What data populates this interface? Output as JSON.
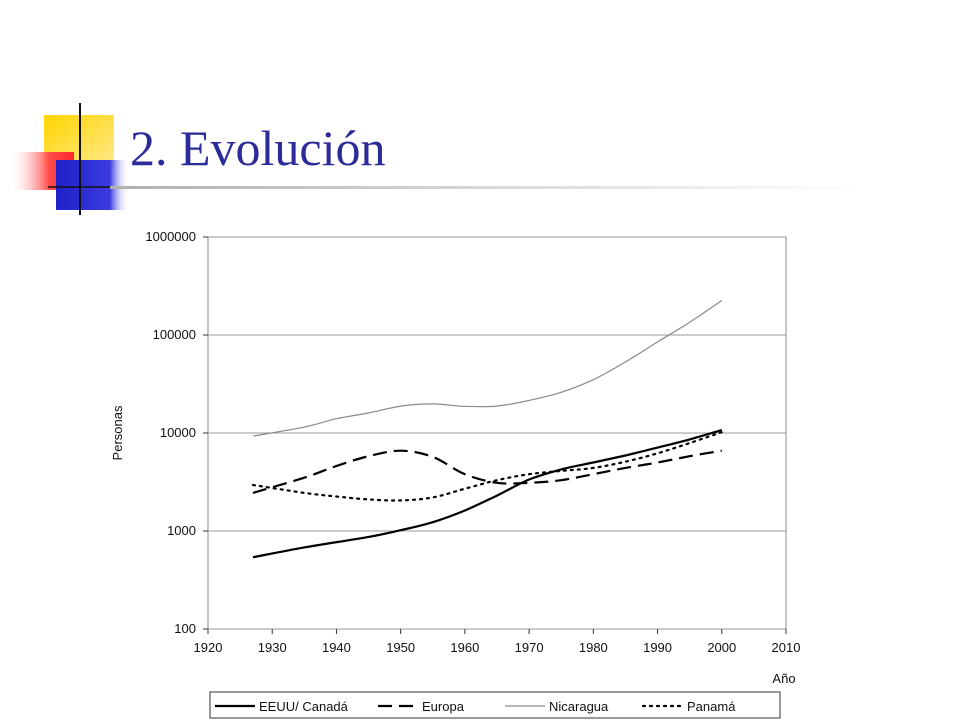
{
  "slide": {
    "title": "2. Evolución"
  },
  "chart_data": {
    "type": "line",
    "title": "",
    "xlabel": "Año",
    "ylabel": "Personas",
    "x_ticks": [
      1920,
      1930,
      1940,
      1950,
      1960,
      1970,
      1980,
      1990,
      2000,
      2010
    ],
    "y_ticks": [
      100,
      1000,
      10000,
      100000,
      1000000
    ],
    "y_tick_labels": [
      "100",
      "1000",
      "10000",
      "100000",
      "1000000"
    ],
    "x_tick_labels": [
      "1920",
      "1930",
      "1940",
      "1950",
      "1960",
      "1970",
      "1980",
      "1990",
      "2000",
      "2010"
    ],
    "xlim": [
      1920,
      2010
    ],
    "ylim": [
      100,
      1000000
    ],
    "yscale": "log",
    "grid": "horizontal",
    "legend_position": "bottom",
    "series": [
      {
        "name": "EEUU/ Canadá",
        "style": "solid",
        "color": "#000000",
        "x": [
          1927,
          1935,
          1945,
          1950,
          1955,
          1960,
          1965,
          1970,
          1975,
          1980,
          1985,
          1990,
          1995,
          2000
        ],
        "y": [
          540,
          680,
          870,
          1020,
          1230,
          1620,
          2300,
          3350,
          4250,
          5000,
          5900,
          7100,
          8600,
          10700
        ]
      },
      {
        "name": "Europa",
        "style": "dashed",
        "color": "#000000",
        "x": [
          1927,
          1935,
          1940,
          1945,
          1950,
          1955,
          1960,
          1965,
          1970,
          1975,
          1980,
          1985,
          1990,
          1995,
          2000
        ],
        "y": [
          2450,
          3500,
          4600,
          5800,
          6600,
          5700,
          3800,
          3100,
          3100,
          3300,
          3800,
          4400,
          5000,
          5800,
          6600
        ]
      },
      {
        "name": "Nicaragua",
        "style": "thin",
        "color": "#8a8a8a",
        "x": [
          1927,
          1935,
          1940,
          1945,
          1950,
          1955,
          1960,
          1965,
          1970,
          1975,
          1980,
          1985,
          1990,
          1995,
          2000
        ],
        "y": [
          9300,
          11500,
          14000,
          16000,
          18800,
          19800,
          18700,
          18800,
          21500,
          26000,
          35000,
          53000,
          85000,
          135000,
          225000
        ]
      },
      {
        "name": "Panamá",
        "style": "dotted",
        "color": "#000000",
        "x": [
          1927,
          1935,
          1940,
          1945,
          1950,
          1955,
          1960,
          1965,
          1970,
          1975,
          1980,
          1985,
          1990,
          1995,
          2000
        ],
        "y": [
          2950,
          2450,
          2250,
          2100,
          2050,
          2200,
          2700,
          3300,
          3800,
          4100,
          4400,
          5100,
          6200,
          7900,
          10200
        ]
      }
    ]
  }
}
